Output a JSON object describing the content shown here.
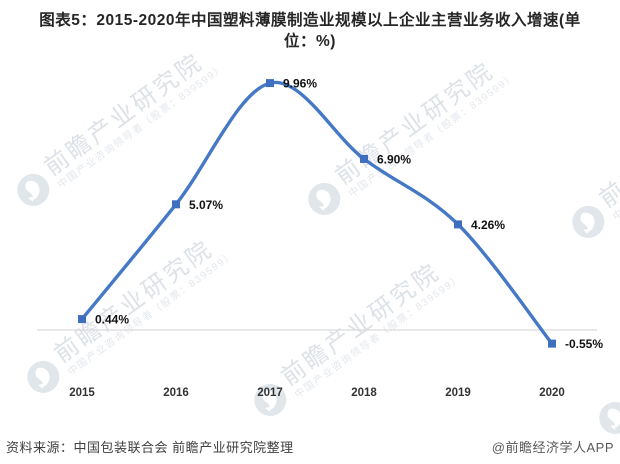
{
  "title": {
    "line1": "图表5：2015-2020年中国塑料薄膜制造业规模以上企业主营业务收入增速(单",
    "line2": "位：%)"
  },
  "chart_data": {
    "type": "line",
    "smooth": true,
    "categories": [
      "2015",
      "2016",
      "2017",
      "2018",
      "2019",
      "2020"
    ],
    "values": [
      0.44,
      5.07,
      9.96,
      6.9,
      4.26,
      -0.55
    ],
    "point_labels": [
      "0.44%",
      "5.07%",
      "9.96%",
      "6.90%",
      "4.26%",
      "-0.55%"
    ],
    "title": "2015-2020年中国塑料薄膜制造业规模以上企业主营业务收入增速",
    "unit": "%",
    "xlabel": "",
    "ylabel": "",
    "baseline_value": 0,
    "grid": "zero-line-only",
    "legend": "none",
    "line_color": "#4579C6",
    "marker_color": "#3E6FBF",
    "gridline_color": "#D9D9D9",
    "point_label_color": "#111111",
    "axis_label_color": "#333333"
  },
  "footer": {
    "source": "资料来源：中国包装联合会 前瞻产业研究院整理",
    "credit": "@前瞻经济学人APP"
  },
  "watermark": {
    "logo": "qianzhan-logo",
    "text": "前瞻产业研究院",
    "subtext": "中国产业咨询领导者（股票：839599）",
    "color": "#dde2e8"
  }
}
